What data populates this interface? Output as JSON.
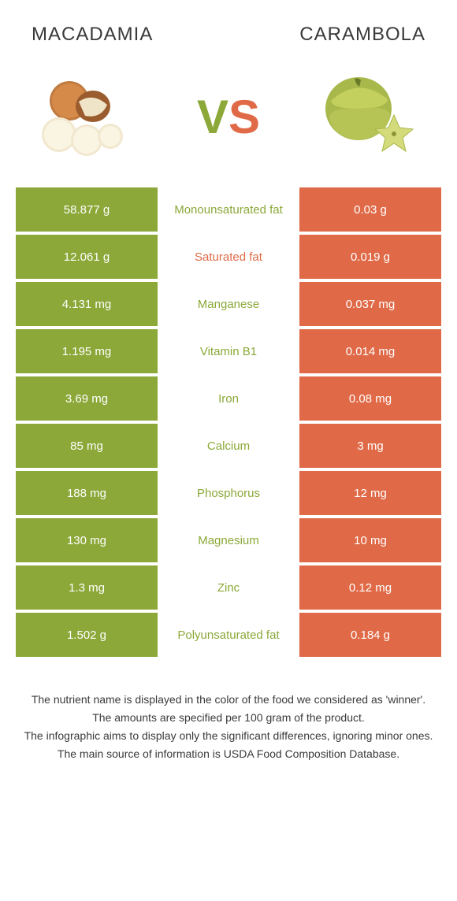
{
  "header": {
    "left_title": "MACADAMIA",
    "right_title": "CARAMBOLA",
    "vs_v": "V",
    "vs_s": "S"
  },
  "colors": {
    "left_bg": "#8ba838",
    "right_bg": "#e06a47",
    "left_text": "#8ba838",
    "right_text": "#e06a47",
    "white": "#ffffff"
  },
  "rows": [
    {
      "left": "58.877 g",
      "label": "Monounsaturated fat",
      "right": "0.03 g",
      "winner": "left"
    },
    {
      "left": "12.061 g",
      "label": "Saturated fat",
      "right": "0.019 g",
      "winner": "right"
    },
    {
      "left": "4.131 mg",
      "label": "Manganese",
      "right": "0.037 mg",
      "winner": "left"
    },
    {
      "left": "1.195 mg",
      "label": "Vitamin B1",
      "right": "0.014 mg",
      "winner": "left"
    },
    {
      "left": "3.69 mg",
      "label": "Iron",
      "right": "0.08 mg",
      "winner": "left"
    },
    {
      "left": "85 mg",
      "label": "Calcium",
      "right": "3 mg",
      "winner": "left"
    },
    {
      "left": "188 mg",
      "label": "Phosphorus",
      "right": "12 mg",
      "winner": "left"
    },
    {
      "left": "130 mg",
      "label": "Magnesium",
      "right": "10 mg",
      "winner": "left"
    },
    {
      "left": "1.3 mg",
      "label": "Zinc",
      "right": "0.12 mg",
      "winner": "left"
    },
    {
      "left": "1.502 g",
      "label": "Polyunsaturated fat",
      "right": "0.184 g",
      "winner": "left"
    }
  ],
  "footer": {
    "line1": "The nutrient name is displayed in the color of the food we considered as 'winner'.",
    "line2": "The amounts are specified per 100 gram of the product.",
    "line3": "The infographic aims to display only the significant differences, ignoring minor ones.",
    "line4": "The main source of information is USDA Food Composition Database."
  }
}
